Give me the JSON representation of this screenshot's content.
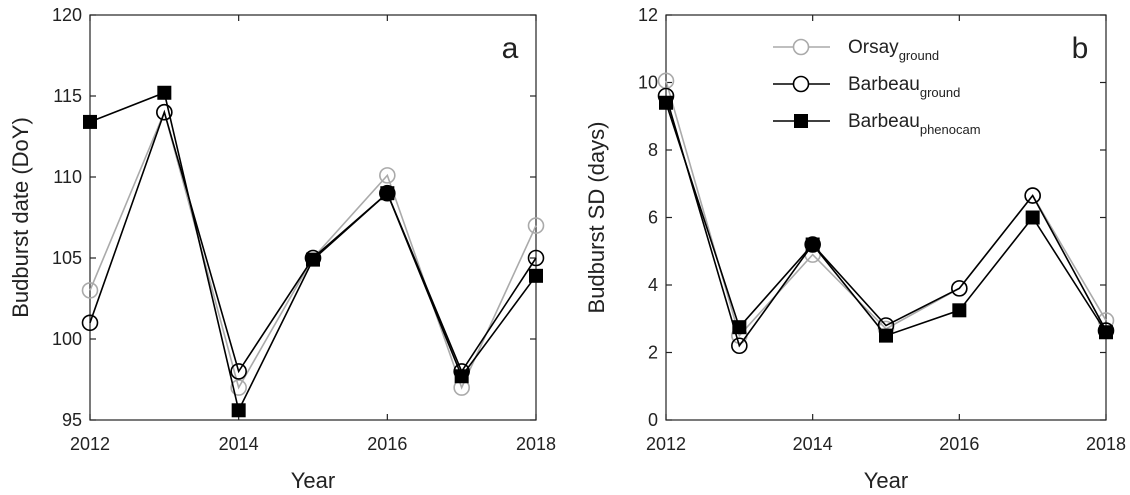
{
  "chart_data": [
    {
      "type": "line",
      "panel_label": "a",
      "xlabel": "Year",
      "ylabel": "Budburst date (DoY)",
      "xlim": [
        2012,
        2018
      ],
      "ylim": [
        95,
        120
      ],
      "xticks": [
        2012,
        2014,
        2016,
        2018
      ],
      "yticks": [
        95,
        100,
        105,
        110,
        115,
        120
      ],
      "x": [
        2012,
        2013,
        2014,
        2015,
        2016,
        2017,
        2018
      ],
      "grid": false,
      "series": [
        {
          "name": "Orsay",
          "name_sub": "ground",
          "color": "#aaaaaa",
          "marker": "open-circle",
          "values": [
            103.0,
            114.0,
            97.0,
            105.0,
            110.1,
            97.0,
            107.0
          ]
        },
        {
          "name": "Barbeau",
          "name_sub": "ground",
          "color": "#000000",
          "marker": "open-circle",
          "values": [
            101.0,
            114.0,
            98.0,
            105.0,
            109.0,
            98.0,
            105.0
          ]
        },
        {
          "name": "Barbeau",
          "name_sub": "phenocam",
          "color": "#000000",
          "marker": "filled-square",
          "values": [
            113.4,
            115.2,
            95.6,
            104.9,
            109.0,
            97.7,
            103.9
          ]
        }
      ]
    },
    {
      "type": "line",
      "panel_label": "b",
      "xlabel": "Year",
      "ylabel": "Budburst SD (days)",
      "xlim": [
        2012,
        2018
      ],
      "ylim": [
        0,
        12
      ],
      "xticks": [
        2012,
        2014,
        2016,
        2018
      ],
      "yticks": [
        0,
        2,
        4,
        6,
        8,
        10,
        12
      ],
      "x": [
        2012,
        2013,
        2014,
        2015,
        2016,
        2017,
        2018
      ],
      "grid": false,
      "legend_position": "top-center",
      "series": [
        {
          "name": "Orsay",
          "name_sub": "ground",
          "color": "#aaaaaa",
          "marker": "open-circle",
          "values": [
            10.05,
            2.5,
            4.9,
            2.7,
            3.9,
            6.65,
            2.95
          ]
        },
        {
          "name": "Barbeau",
          "name_sub": "ground",
          "color": "#000000",
          "marker": "open-circle",
          "values": [
            9.6,
            2.2,
            5.2,
            2.8,
            3.9,
            6.65,
            2.65
          ]
        },
        {
          "name": "Barbeau",
          "name_sub": "phenocam",
          "color": "#000000",
          "marker": "filled-square",
          "values": [
            9.4,
            2.75,
            5.2,
            2.5,
            3.25,
            6.0,
            2.6
          ]
        }
      ]
    }
  ]
}
